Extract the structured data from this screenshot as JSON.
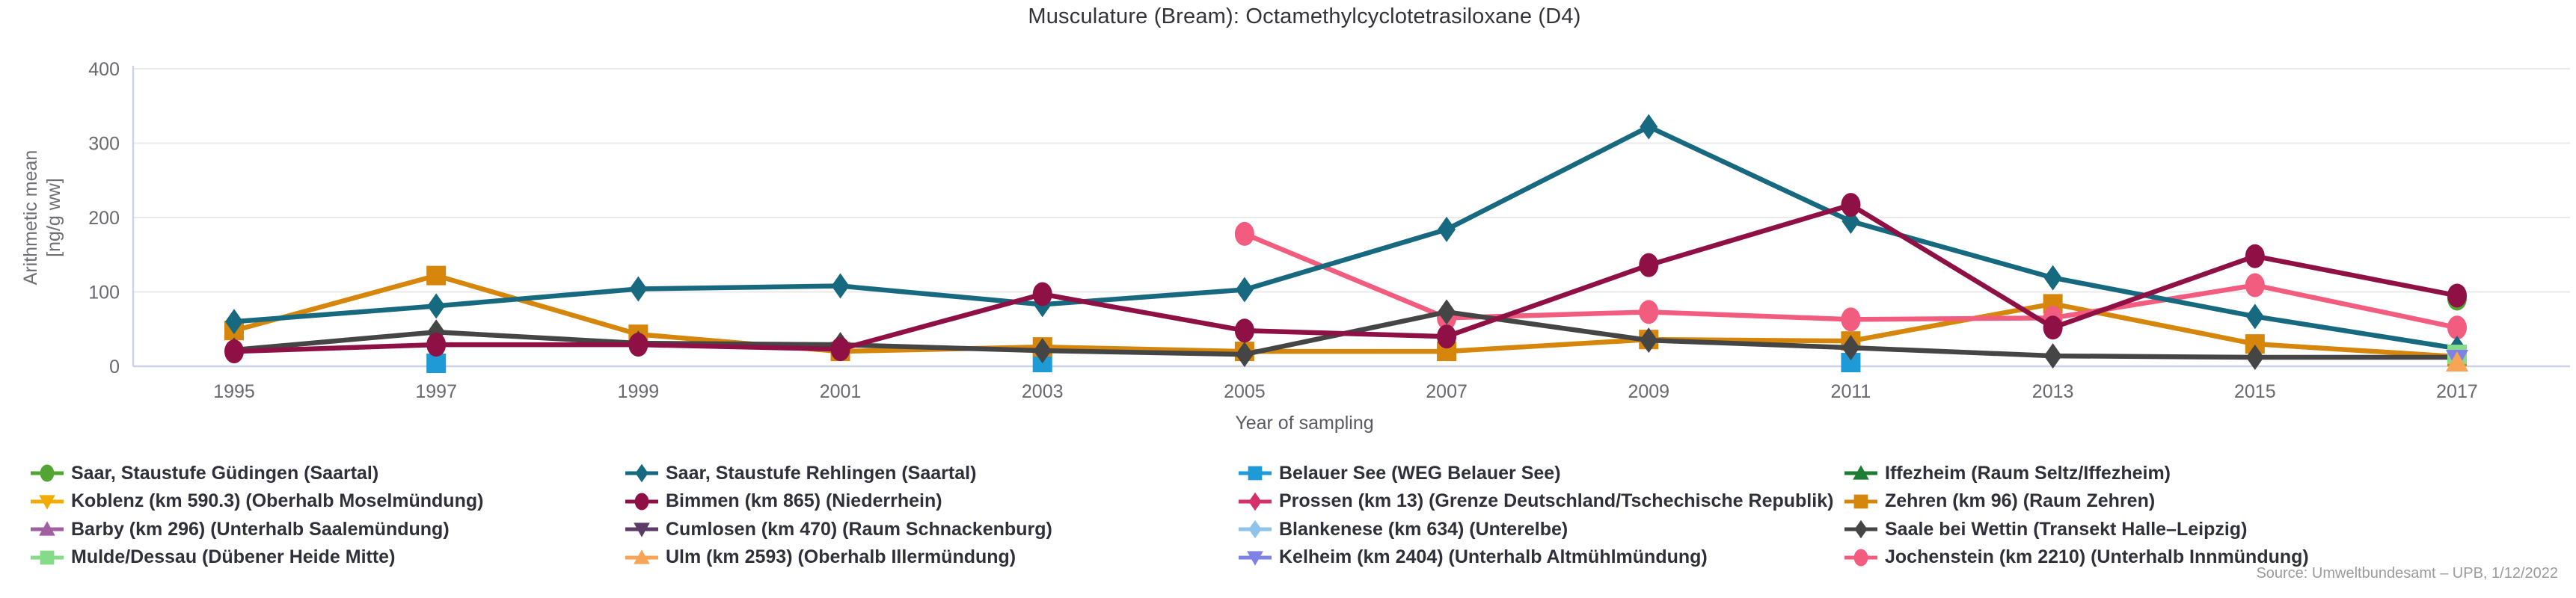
{
  "title": "Musculature (Bream): Octamethylcyclotetrasiloxane (D4)",
  "y_axis": {
    "label_line1": "Arithmetic mean",
    "label_line2": "[ng/g ww]",
    "ticks": [
      0,
      100,
      200,
      300,
      400
    ]
  },
  "x_axis": {
    "label": "Year of sampling",
    "ticks": [
      1995,
      1997,
      1999,
      2001,
      2003,
      2005,
      2007,
      2009,
      2011,
      2013,
      2015,
      2017
    ]
  },
  "source": "Source: Umweltbundesamt – UPB, 1/12/2022",
  "chart_data": {
    "type": "line",
    "x": [
      1995,
      1997,
      1999,
      2001,
      2003,
      2005,
      2007,
      2009,
      2011,
      2013,
      2015,
      2017
    ],
    "ylim": [
      0,
      400
    ],
    "grid": "horizontal",
    "legend_position": "bottom",
    "series": [
      {
        "name": "Saar, Staustufe Güdingen (Saartal)",
        "color": "#52A433",
        "marker": "circle",
        "values": [
          null,
          null,
          null,
          null,
          null,
          null,
          null,
          null,
          null,
          null,
          null,
          91
        ]
      },
      {
        "name": "Saar, Staustufe Rehlingen (Saartal)",
        "color": "#17697F",
        "marker": "diamond",
        "values": [
          60,
          81,
          104,
          108,
          83,
          103,
          184,
          322,
          195,
          119,
          67,
          24
        ]
      },
      {
        "name": "Belauer See (WEG Belauer See)",
        "color": "#1E9BD7",
        "marker": "square",
        "values": [
          null,
          4,
          null,
          null,
          5,
          null,
          null,
          null,
          5,
          null,
          null,
          null
        ]
      },
      {
        "name": "Iffezheim (Raum Seltz/Iffezheim)",
        "color": "#1E7D32",
        "marker": "triangle-up",
        "values": [
          null,
          null,
          null,
          null,
          null,
          null,
          null,
          null,
          null,
          null,
          null,
          null
        ]
      },
      {
        "name": "Koblenz (km 590.3) (Oberhalb Moselmündung)",
        "color": "#F0AD00",
        "marker": "triangle-down",
        "values": [
          null,
          null,
          null,
          null,
          null,
          null,
          null,
          null,
          null,
          null,
          null,
          null
        ]
      },
      {
        "name": "Bimmen (km 865) (Niederrhein)",
        "color": "#8E1045",
        "marker": "circle",
        "values": [
          20,
          29,
          29,
          23,
          97,
          48,
          40,
          136,
          217,
          52,
          148,
          95
        ]
      },
      {
        "name": "Prossen (km 13) (Grenze Deutschland/Tschechische Republik)",
        "color": "#D63069",
        "marker": "diamond",
        "values": [
          null,
          null,
          null,
          null,
          null,
          null,
          null,
          null,
          null,
          null,
          null,
          null
        ]
      },
      {
        "name": "Zehren (km 96) (Raum Zehren)",
        "color": "#D6860B",
        "marker": "square",
        "values": [
          48,
          122,
          43,
          20,
          26,
          20,
          20,
          36,
          34,
          84,
          30,
          13
        ]
      },
      {
        "name": "Barby (km 296) (Unterhalb Saalemündung)",
        "color": "#A05FA0",
        "marker": "triangle-up",
        "values": [
          null,
          null,
          null,
          null,
          null,
          null,
          null,
          null,
          null,
          null,
          null,
          null
        ]
      },
      {
        "name": "Cumlosen (km 470) (Raum Schnackenburg)",
        "color": "#5E3A68",
        "marker": "triangle-down",
        "values": [
          null,
          null,
          null,
          null,
          null,
          null,
          null,
          null,
          null,
          null,
          null,
          null
        ]
      },
      {
        "name": "Blankenese (km 634) (Unterelbe)",
        "color": "#8FC3EA",
        "marker": "diamond",
        "values": [
          null,
          null,
          null,
          null,
          null,
          null,
          null,
          null,
          null,
          null,
          null,
          null
        ]
      },
      {
        "name": "Saale bei Wettin (Transekt Halle–Leipzig)",
        "color": "#454545",
        "marker": "diamond",
        "values": [
          22,
          46,
          31,
          29,
          21,
          16,
          73,
          35,
          25,
          14,
          12,
          12
        ]
      },
      {
        "name": "Mulde/Dessau (Dübener Heide Mitte)",
        "color": "#86DB8A",
        "marker": "square",
        "values": [
          null,
          null,
          null,
          null,
          null,
          null,
          null,
          null,
          null,
          null,
          null,
          16
        ]
      },
      {
        "name": "Ulm (km 2593) (Oberhalb Illermündung)",
        "color": "#F7A456",
        "marker": "triangle-up",
        "values": [
          null,
          null,
          null,
          null,
          null,
          null,
          null,
          null,
          null,
          null,
          null,
          5
        ]
      },
      {
        "name": "Kelheim (km 2404) (Unterhalb Altmühlmündung)",
        "color": "#7D82E4",
        "marker": "triangle-down",
        "values": [
          null,
          null,
          null,
          null,
          null,
          null,
          null,
          null,
          null,
          null,
          null,
          10
        ]
      },
      {
        "name": "Jochenstein (km 2210) (Unterhalb Innmündung)",
        "color": "#F25C7F",
        "marker": "circle",
        "values": [
          null,
          null,
          null,
          null,
          null,
          178,
          65,
          73,
          63,
          65,
          109,
          52
        ]
      }
    ]
  }
}
